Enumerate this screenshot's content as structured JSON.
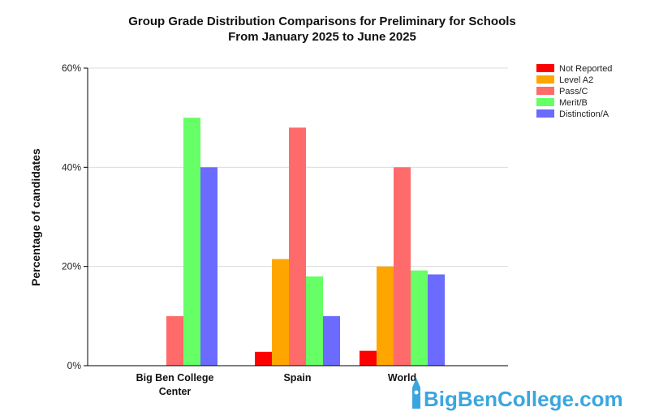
{
  "chart_data": {
    "type": "bar",
    "title": "Group Grade Distribution Comparisons for Preliminary for Schools",
    "subtitle": "From January 2025 to June 2025",
    "ylabel": "Percentage of candidates",
    "xlabel": "",
    "ylim": [
      0,
      60
    ],
    "yticks": [
      "0%",
      "20%",
      "40%",
      "60%"
    ],
    "ytick_values": [
      0,
      20,
      40,
      60
    ],
    "grid": true,
    "legend_position": "top-right",
    "categories": [
      {
        "line1": "Big Ben College",
        "line2": "Center"
      },
      {
        "line1": "Spain",
        "line2": ""
      },
      {
        "line1": "World",
        "line2": ""
      }
    ],
    "series": [
      {
        "name": "Not Reported",
        "color": "#ff0000",
        "values": [
          0,
          2.8,
          3.0
        ]
      },
      {
        "name": "Level A2",
        "color": "#ffa500",
        "values": [
          0,
          21.5,
          20.0
        ]
      },
      {
        "name": "Pass/C",
        "color": "#ff6b6b",
        "values": [
          10.0,
          48.0,
          40.0
        ]
      },
      {
        "name": "Merit/B",
        "color": "#66ff66",
        "values": [
          50.0,
          18.0,
          19.2
        ]
      },
      {
        "name": "Distinction/A",
        "color": "#6b6bff",
        "values": [
          40.0,
          10.0,
          18.4
        ]
      }
    ]
  },
  "watermark": {
    "text": "BigBenCollege.com",
    "color": "#3aa6e0"
  }
}
